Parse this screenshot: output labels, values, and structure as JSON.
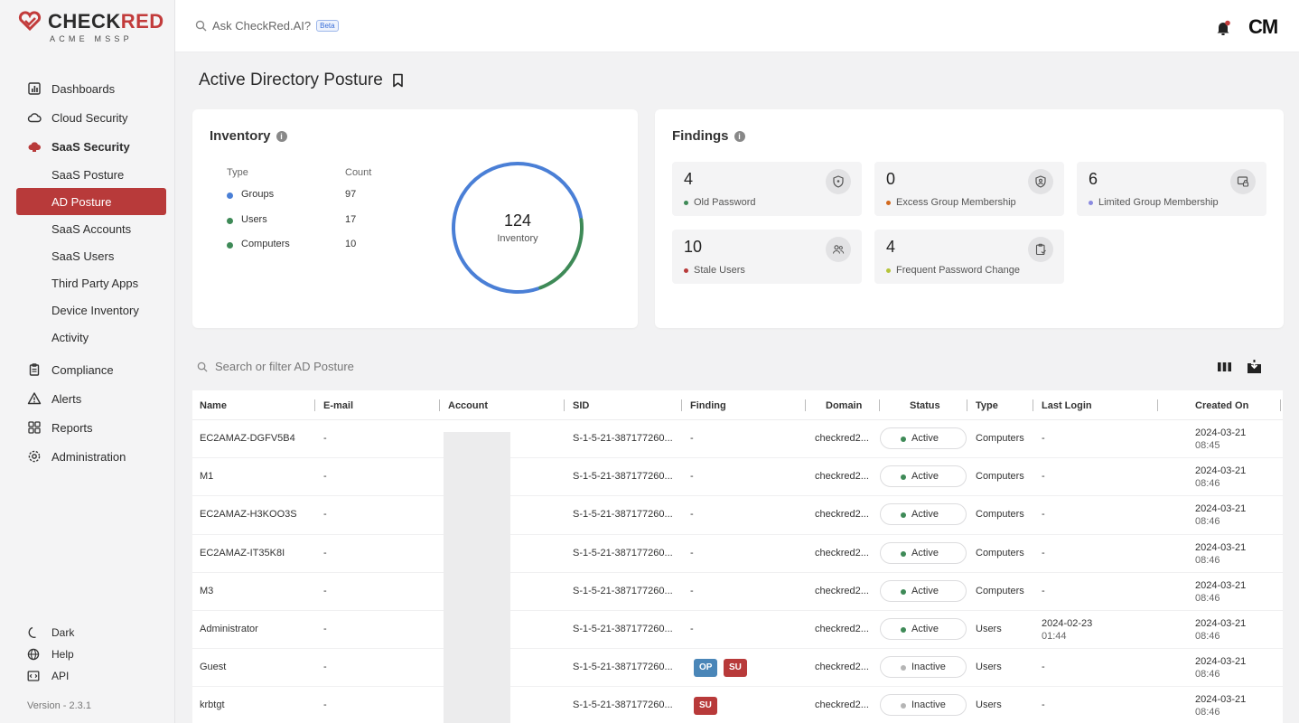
{
  "brand": {
    "name_left": "CHECK",
    "name_right": "RED",
    "subtitle": "ACME MSSP"
  },
  "sidebar": {
    "items": [
      {
        "label": "Dashboards",
        "icon": "dashboard-icon"
      },
      {
        "label": "Cloud Security",
        "icon": "cloud-icon"
      },
      {
        "label": "SaaS Security",
        "icon": "saas-cloud-icon"
      }
    ],
    "saas_sub": [
      "SaaS Posture",
      "AD Posture",
      "SaaS Accounts",
      "SaaS Users",
      "Third Party Apps",
      "Device Inventory",
      "Activity"
    ],
    "items2": [
      {
        "label": "Compliance",
        "icon": "clipboard-icon"
      },
      {
        "label": "Alerts",
        "icon": "warning-icon"
      },
      {
        "label": "Reports",
        "icon": "grid-icon"
      },
      {
        "label": "Administration",
        "icon": "gear-icon"
      }
    ],
    "bottom": [
      {
        "label": "Dark",
        "icon": "moon-icon"
      },
      {
        "label": "Help",
        "icon": "globe-icon"
      },
      {
        "label": "API",
        "icon": "code-icon"
      }
    ],
    "version": "Version - 2.3.1"
  },
  "topbar": {
    "ask_placeholder": "Ask CheckRed.AI?",
    "beta": "Beta",
    "avatar": "CM"
  },
  "page": {
    "title": "Active Directory Posture"
  },
  "inventory": {
    "title": "Inventory",
    "col_type": "Type",
    "col_count": "Count",
    "rows": [
      {
        "type": "Groups",
        "count": "97",
        "color": "#4a7fd6"
      },
      {
        "type": "Users",
        "count": "17",
        "color": "#3e8a57"
      },
      {
        "type": "Computers",
        "count": "10",
        "color": "#3e8a57"
      }
    ],
    "total": "124",
    "total_label": "Inventory"
  },
  "findings": {
    "title": "Findings",
    "items": [
      {
        "count": "4",
        "label": "Old Password",
        "dot": "#3e8a57",
        "icon": "shield-icon"
      },
      {
        "count": "0",
        "label": "Excess Group Membership",
        "dot": "#d2691e",
        "icon": "shield-user-icon"
      },
      {
        "count": "6",
        "label": "Limited Group Membership",
        "dot": "#8a8ae0",
        "icon": "lock-screen-icon"
      },
      {
        "count": "10",
        "label": "Stale Users",
        "dot": "#b83a3a",
        "icon": "users-icon"
      },
      {
        "count": "4",
        "label": "Frequent Password Change",
        "dot": "#b5c43a",
        "icon": "clipboard-check-icon"
      }
    ]
  },
  "table": {
    "search_placeholder": "Search or filter AD Posture",
    "columns": [
      "Name",
      "E-mail",
      "Account",
      "SID",
      "Finding",
      "Domain",
      "Status",
      "Type",
      "Last Login",
      "Created On"
    ],
    "rows": [
      {
        "name": "EC2AMAZ-DGFV5B4",
        "email": "-",
        "sid": "S-1-5-21-387177260...",
        "finding": "-",
        "tags": [],
        "domain": "checkred2...",
        "status": "Active",
        "type": "Computers",
        "last_login": "-",
        "last_login_time": "",
        "created": "2024-03-21",
        "created_time": "08:45"
      },
      {
        "name": "M1",
        "email": "-",
        "sid": "S-1-5-21-387177260...",
        "finding": "-",
        "tags": [],
        "domain": "checkred2...",
        "status": "Active",
        "type": "Computers",
        "last_login": "-",
        "last_login_time": "",
        "created": "2024-03-21",
        "created_time": "08:46"
      },
      {
        "name": "EC2AMAZ-H3KOO3S",
        "email": "-",
        "sid": "S-1-5-21-387177260...",
        "finding": "-",
        "tags": [],
        "domain": "checkred2...",
        "status": "Active",
        "type": "Computers",
        "last_login": "-",
        "last_login_time": "",
        "created": "2024-03-21",
        "created_time": "08:46"
      },
      {
        "name": "EC2AMAZ-IT35K8I",
        "email": "-",
        "sid": "S-1-5-21-387177260...",
        "finding": "-",
        "tags": [],
        "domain": "checkred2...",
        "status": "Active",
        "type": "Computers",
        "last_login": "-",
        "last_login_time": "",
        "created": "2024-03-21",
        "created_time": "08:46"
      },
      {
        "name": "M3",
        "email": "-",
        "sid": "S-1-5-21-387177260...",
        "finding": "-",
        "tags": [],
        "domain": "checkred2...",
        "status": "Active",
        "type": "Computers",
        "last_login": "-",
        "last_login_time": "",
        "created": "2024-03-21",
        "created_time": "08:46"
      },
      {
        "name": "Administrator",
        "email": "-",
        "sid": "S-1-5-21-387177260...",
        "finding": "-",
        "tags": [],
        "domain": "checkred2...",
        "status": "Active",
        "type": "Users",
        "last_login": "2024-02-23",
        "last_login_time": "01:44",
        "created": "2024-03-21",
        "created_time": "08:46"
      },
      {
        "name": "Guest",
        "email": "-",
        "sid": "S-1-5-21-387177260...",
        "finding": "",
        "tags": [
          {
            "text": "OP",
            "color": "#4a86b8"
          },
          {
            "text": "SU",
            "color": "#b83a3a"
          }
        ],
        "domain": "checkred2...",
        "status": "Inactive",
        "type": "Users",
        "last_login": "-",
        "last_login_time": "",
        "created": "2024-03-21",
        "created_time": "08:46"
      },
      {
        "name": "krbtgt",
        "email": "-",
        "sid": "S-1-5-21-387177260...",
        "finding": "",
        "tags": [
          {
            "text": "SU",
            "color": "#b83a3a"
          }
        ],
        "domain": "checkred2...",
        "status": "Inactive",
        "type": "Users",
        "last_login": "-",
        "last_login_time": "",
        "created": "2024-03-21",
        "created_time": "08:46"
      }
    ],
    "status_colors": {
      "Active": "#3e8a57",
      "Inactive": "#b5b5b5"
    }
  }
}
